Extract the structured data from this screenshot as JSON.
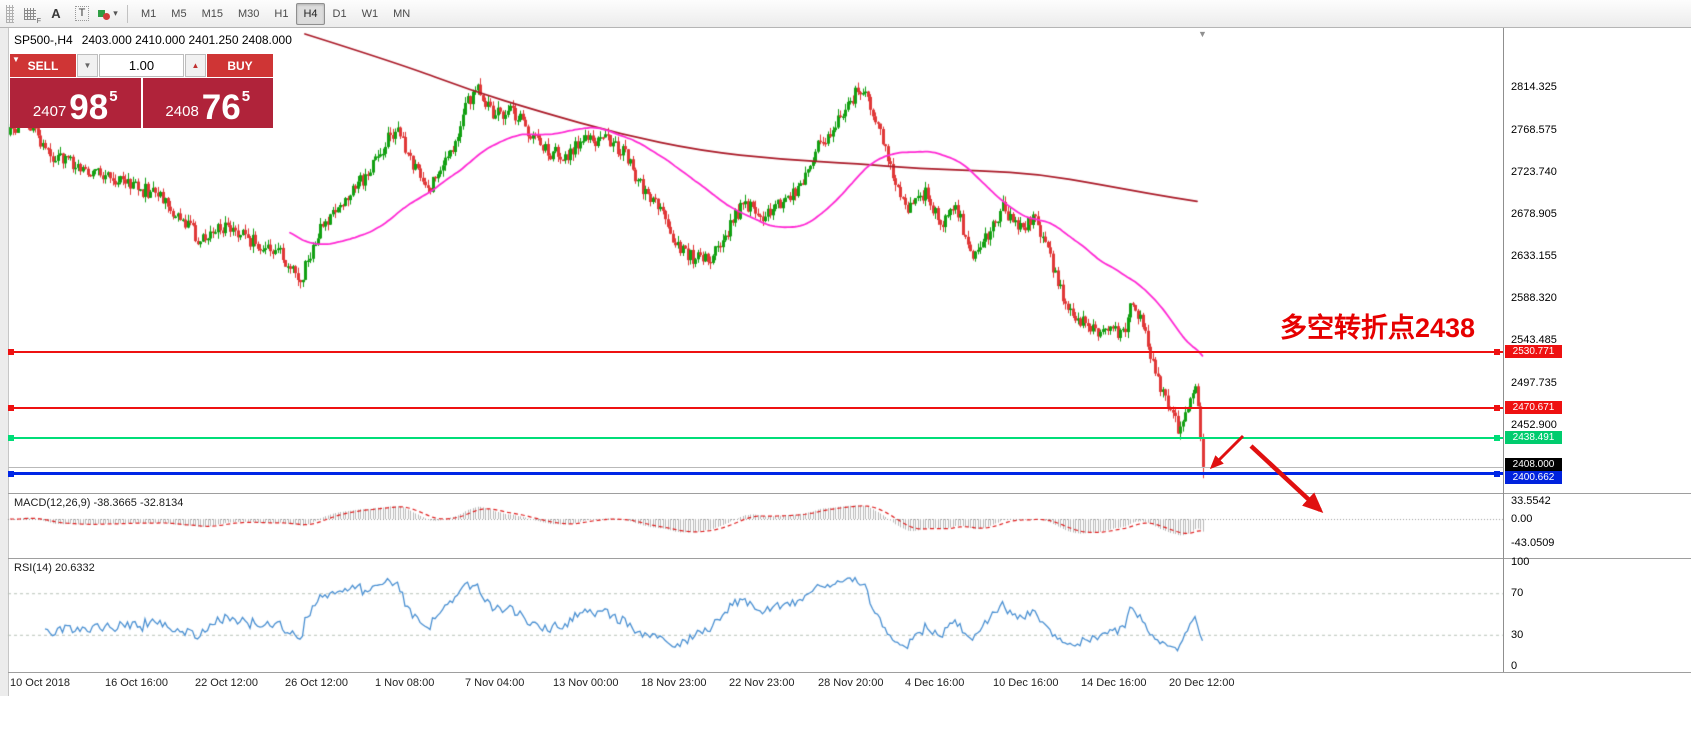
{
  "toolbar": {
    "timeframes": [
      "M1",
      "M5",
      "M15",
      "M30",
      "H1",
      "H4",
      "D1",
      "W1",
      "MN"
    ],
    "active_timeframe": "H4",
    "icons": [
      "toolbar-grip",
      "tick-grid-F",
      "label-A",
      "text-T",
      "shapes-dropdown"
    ]
  },
  "trade_panel": {
    "sell_label": "SELL",
    "buy_label": "BUY",
    "volume": "1.00",
    "sell_price": {
      "prefix": "2407",
      "big": "98",
      "sup": "5"
    },
    "buy_price": {
      "prefix": "2408",
      "big": "76",
      "sup": "5"
    },
    "colors": {
      "button_red": "#cf3535",
      "panel_red": "#b0233a"
    }
  },
  "chart": {
    "symbol_header": "SP500-,H4",
    "ohlc": "2403.000 2410.000 2401.250 2408.000",
    "annotation": "多空转折点2438",
    "annotation_color": "#e60000",
    "current_price": "2408.000",
    "current_price_value": 2408.0,
    "axis_ticks": [
      "2814.325",
      "2768.575",
      "2723.740",
      "2678.905",
      "2633.155",
      "2588.320",
      "2543.485",
      "2497.735",
      "2452.900"
    ],
    "levels": [
      {
        "price": "2530.771",
        "value": 2530.771,
        "color": "#ee1111",
        "tag_bg": "#ee1111",
        "thick": false
      },
      {
        "price": "2470.671",
        "value": 2470.671,
        "color": "#ee1111",
        "tag_bg": "#ee1111",
        "thick": false
      },
      {
        "price": "2438.491",
        "value": 2438.491,
        "color": "#00dd78",
        "tag_bg": "#00cc6e",
        "thick": false
      },
      {
        "price": "2400.662",
        "value": 2400.662,
        "color": "#0026e6",
        "tag_bg": "#0022dd",
        "thick": true
      }
    ]
  },
  "macd": {
    "label": "MACD(12,26,9) -38.3665 -32.8134",
    "axis": [
      "33.5542",
      "0.00",
      "-43.0509"
    ],
    "axis_values": [
      33.5542,
      0,
      -43.0509
    ]
  },
  "rsi": {
    "label": "RSI(14) 20.6332",
    "axis": [
      "100",
      "70",
      "30",
      "0"
    ],
    "axis_values": [
      100,
      70,
      30,
      0
    ]
  },
  "time_axis": [
    "10 Oct 2018",
    "16 Oct 16:00",
    "22 Oct 12:00",
    "26 Oct 12:00",
    "1 Nov 08:00",
    "7 Nov 04:00",
    "13 Nov 00:00",
    "18 Nov 23:00",
    "22 Nov 23:00",
    "28 Nov 20:00",
    "4 Dec 16:00",
    "10 Dec 16:00",
    "14 Dec 16:00",
    "20 Dec 12:00"
  ],
  "chart_data": {
    "type": "candlestick",
    "symbol": "SP500-",
    "timeframe": "H4",
    "candle_count": 478,
    "visible_price_range": [
      2380,
      2877
    ],
    "last_close": 2408.0,
    "last_low": 2396.0,
    "price_path_anchors": [
      [
        0.0,
        2768
      ],
      [
        0.012,
        2782
      ],
      [
        0.03,
        2744
      ],
      [
        0.06,
        2728
      ],
      [
        0.1,
        2712
      ],
      [
        0.13,
        2692
      ],
      [
        0.16,
        2650
      ],
      [
        0.18,
        2666
      ],
      [
        0.2,
        2652
      ],
      [
        0.225,
        2640
      ],
      [
        0.243,
        2608
      ],
      [
        0.26,
        2662
      ],
      [
        0.28,
        2696
      ],
      [
        0.3,
        2722
      ],
      [
        0.315,
        2756
      ],
      [
        0.325,
        2772
      ],
      [
        0.34,
        2724
      ],
      [
        0.352,
        2708
      ],
      [
        0.37,
        2748
      ],
      [
        0.383,
        2796
      ],
      [
        0.392,
        2812
      ],
      [
        0.405,
        2782
      ],
      [
        0.42,
        2792
      ],
      [
        0.435,
        2768
      ],
      [
        0.45,
        2746
      ],
      [
        0.465,
        2738
      ],
      [
        0.48,
        2756
      ],
      [
        0.5,
        2762
      ],
      [
        0.515,
        2742
      ],
      [
        0.53,
        2706
      ],
      [
        0.545,
        2682
      ],
      [
        0.558,
        2646
      ],
      [
        0.572,
        2632
      ],
      [
        0.585,
        2628
      ],
      [
        0.6,
        2658
      ],
      [
        0.615,
        2690
      ],
      [
        0.63,
        2674
      ],
      [
        0.645,
        2692
      ],
      [
        0.66,
        2702
      ],
      [
        0.675,
        2746
      ],
      [
        0.688,
        2766
      ],
      [
        0.7,
        2792
      ],
      [
        0.712,
        2812
      ],
      [
        0.72,
        2796
      ],
      [
        0.732,
        2758
      ],
      [
        0.742,
        2706
      ],
      [
        0.755,
        2682
      ],
      [
        0.768,
        2702
      ],
      [
        0.78,
        2666
      ],
      [
        0.792,
        2692
      ],
      [
        0.805,
        2636
      ],
      [
        0.818,
        2652
      ],
      [
        0.832,
        2686
      ],
      [
        0.845,
        2662
      ],
      [
        0.858,
        2676
      ],
      [
        0.868,
        2650
      ],
      [
        0.878,
        2606
      ],
      [
        0.888,
        2578
      ],
      [
        0.9,
        2562
      ],
      [
        0.912,
        2550
      ],
      [
        0.922,
        2562
      ],
      [
        0.932,
        2548
      ],
      [
        0.942,
        2588
      ],
      [
        0.952,
        2545
      ],
      [
        0.962,
        2498
      ],
      [
        0.975,
        2460
      ],
      [
        0.982,
        2445
      ],
      [
        0.988,
        2478
      ],
      [
        0.995,
        2490
      ],
      [
        1.0,
        2408
      ]
    ],
    "ma_fast": {
      "color": "#ff2ad4",
      "window": 55
    },
    "ma_slow": {
      "color": "#aa1a28",
      "anchors_x_price": [
        [
          305,
          2871
        ],
        [
          400,
          2839
        ],
        [
          470,
          2811
        ],
        [
          540,
          2788
        ],
        [
          620,
          2764
        ],
        [
          700,
          2746
        ],
        [
          780,
          2737
        ],
        [
          860,
          2732
        ],
        [
          920,
          2727
        ],
        [
          980,
          2725
        ],
        [
          1040,
          2721
        ],
        [
          1100,
          2710
        ],
        [
          1150,
          2700
        ],
        [
          1197,
          2692
        ]
      ]
    },
    "colors": {
      "up": "#12a012",
      "down": "#e03838",
      "macd_hist": "#b8b8b8",
      "macd_signal": "#e02020",
      "rsi_line": "#4a90d2"
    }
  }
}
